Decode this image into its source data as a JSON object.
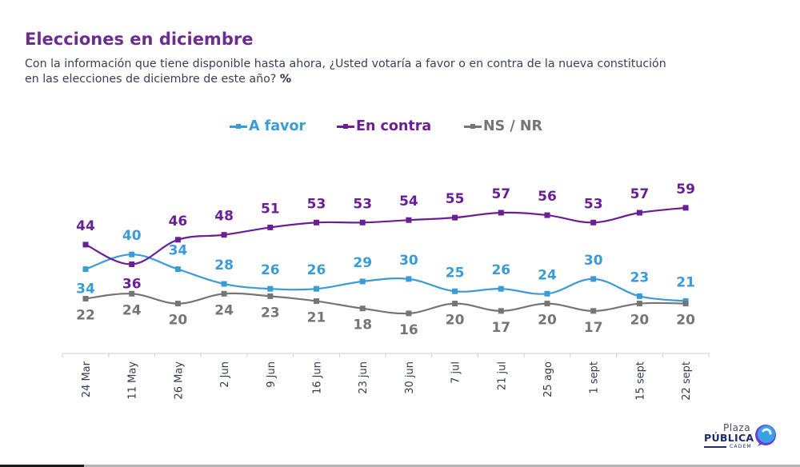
{
  "header": {
    "title": "Elecciones en diciembre",
    "subtitle_line1": "Con la información que tiene disponible hasta ahora, ¿Usted votaría a favor o en contra de la nueva constitución",
    "subtitle_line2": "en las elecciones de diciembre de este año?",
    "subtitle_unit": "%"
  },
  "logo": {
    "plaza": "Plaza",
    "publica": "PÚBLICA",
    "cadem": "CADEM"
  },
  "chart_data": {
    "type": "line",
    "title": "Elecciones en diciembre",
    "xlabel": "",
    "ylabel": "%",
    "ylim": [
      0,
      65
    ],
    "grid": false,
    "legend_position": "top-center",
    "x": [
      "24 Mar",
      "11 May",
      "26 May",
      "2 Jun",
      "9 Jun",
      "16 Jun",
      "23 jun",
      "30 jun",
      "7 jul",
      "21 jul",
      "25 ago",
      "1 sept",
      "15 sept",
      "22 sept"
    ],
    "series": [
      {
        "name": "A favor",
        "color": "#3a9bd6",
        "values": [
          34,
          40,
          34,
          28,
          26,
          26,
          29,
          30,
          25,
          26,
          24,
          30,
          23,
          21
        ]
      },
      {
        "name": "En contra",
        "color": "#6b1f96",
        "values": [
          44,
          36,
          46,
          48,
          51,
          53,
          53,
          54,
          55,
          57,
          56,
          53,
          57,
          59
        ]
      },
      {
        "name": "NS / NR",
        "color": "#757575",
        "values": [
          22,
          24,
          20,
          24,
          23,
          21,
          18,
          16,
          20,
          17,
          20,
          17,
          20,
          20
        ]
      }
    ]
  }
}
